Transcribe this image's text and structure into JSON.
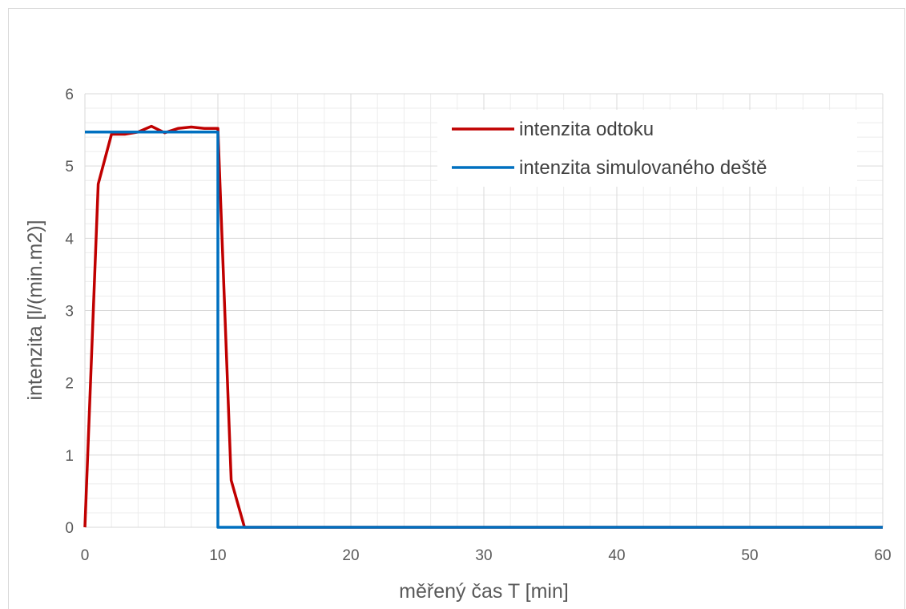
{
  "chart_data": {
    "type": "line",
    "title": "",
    "xlabel": "měřený čas T [min]",
    "ylabel": "intenzita [l/(min.m2)]",
    "xlim": [
      0,
      60
    ],
    "ylim": [
      0,
      6
    ],
    "x_ticks": [
      "0",
      "10",
      "20",
      "30",
      "40",
      "50",
      "60"
    ],
    "y_ticks": [
      "0",
      "1",
      "2",
      "3",
      "4",
      "5",
      "6"
    ],
    "grid": true,
    "legend_position": "top-right",
    "series": [
      {
        "name": "intenzita odtoku",
        "color": "#c00000",
        "x": [
          0,
          1,
          2,
          3,
          4,
          5,
          6,
          7,
          8,
          9,
          10,
          11,
          12,
          13,
          14,
          15,
          20,
          25,
          30,
          35,
          40,
          45,
          50,
          55,
          60
        ],
        "y": [
          0,
          4.75,
          5.44,
          5.44,
          5.47,
          5.55,
          5.46,
          5.52,
          5.54,
          5.52,
          5.52,
          0.65,
          0,
          0,
          0,
          0,
          0,
          0,
          0,
          0,
          0,
          0,
          0,
          0,
          0
        ]
      },
      {
        "name": "intenzita simulovaného deště",
        "color": "#0070c0",
        "x": [
          0,
          10,
          10,
          60
        ],
        "y": [
          5.47,
          5.47,
          0,
          0
        ]
      }
    ]
  }
}
